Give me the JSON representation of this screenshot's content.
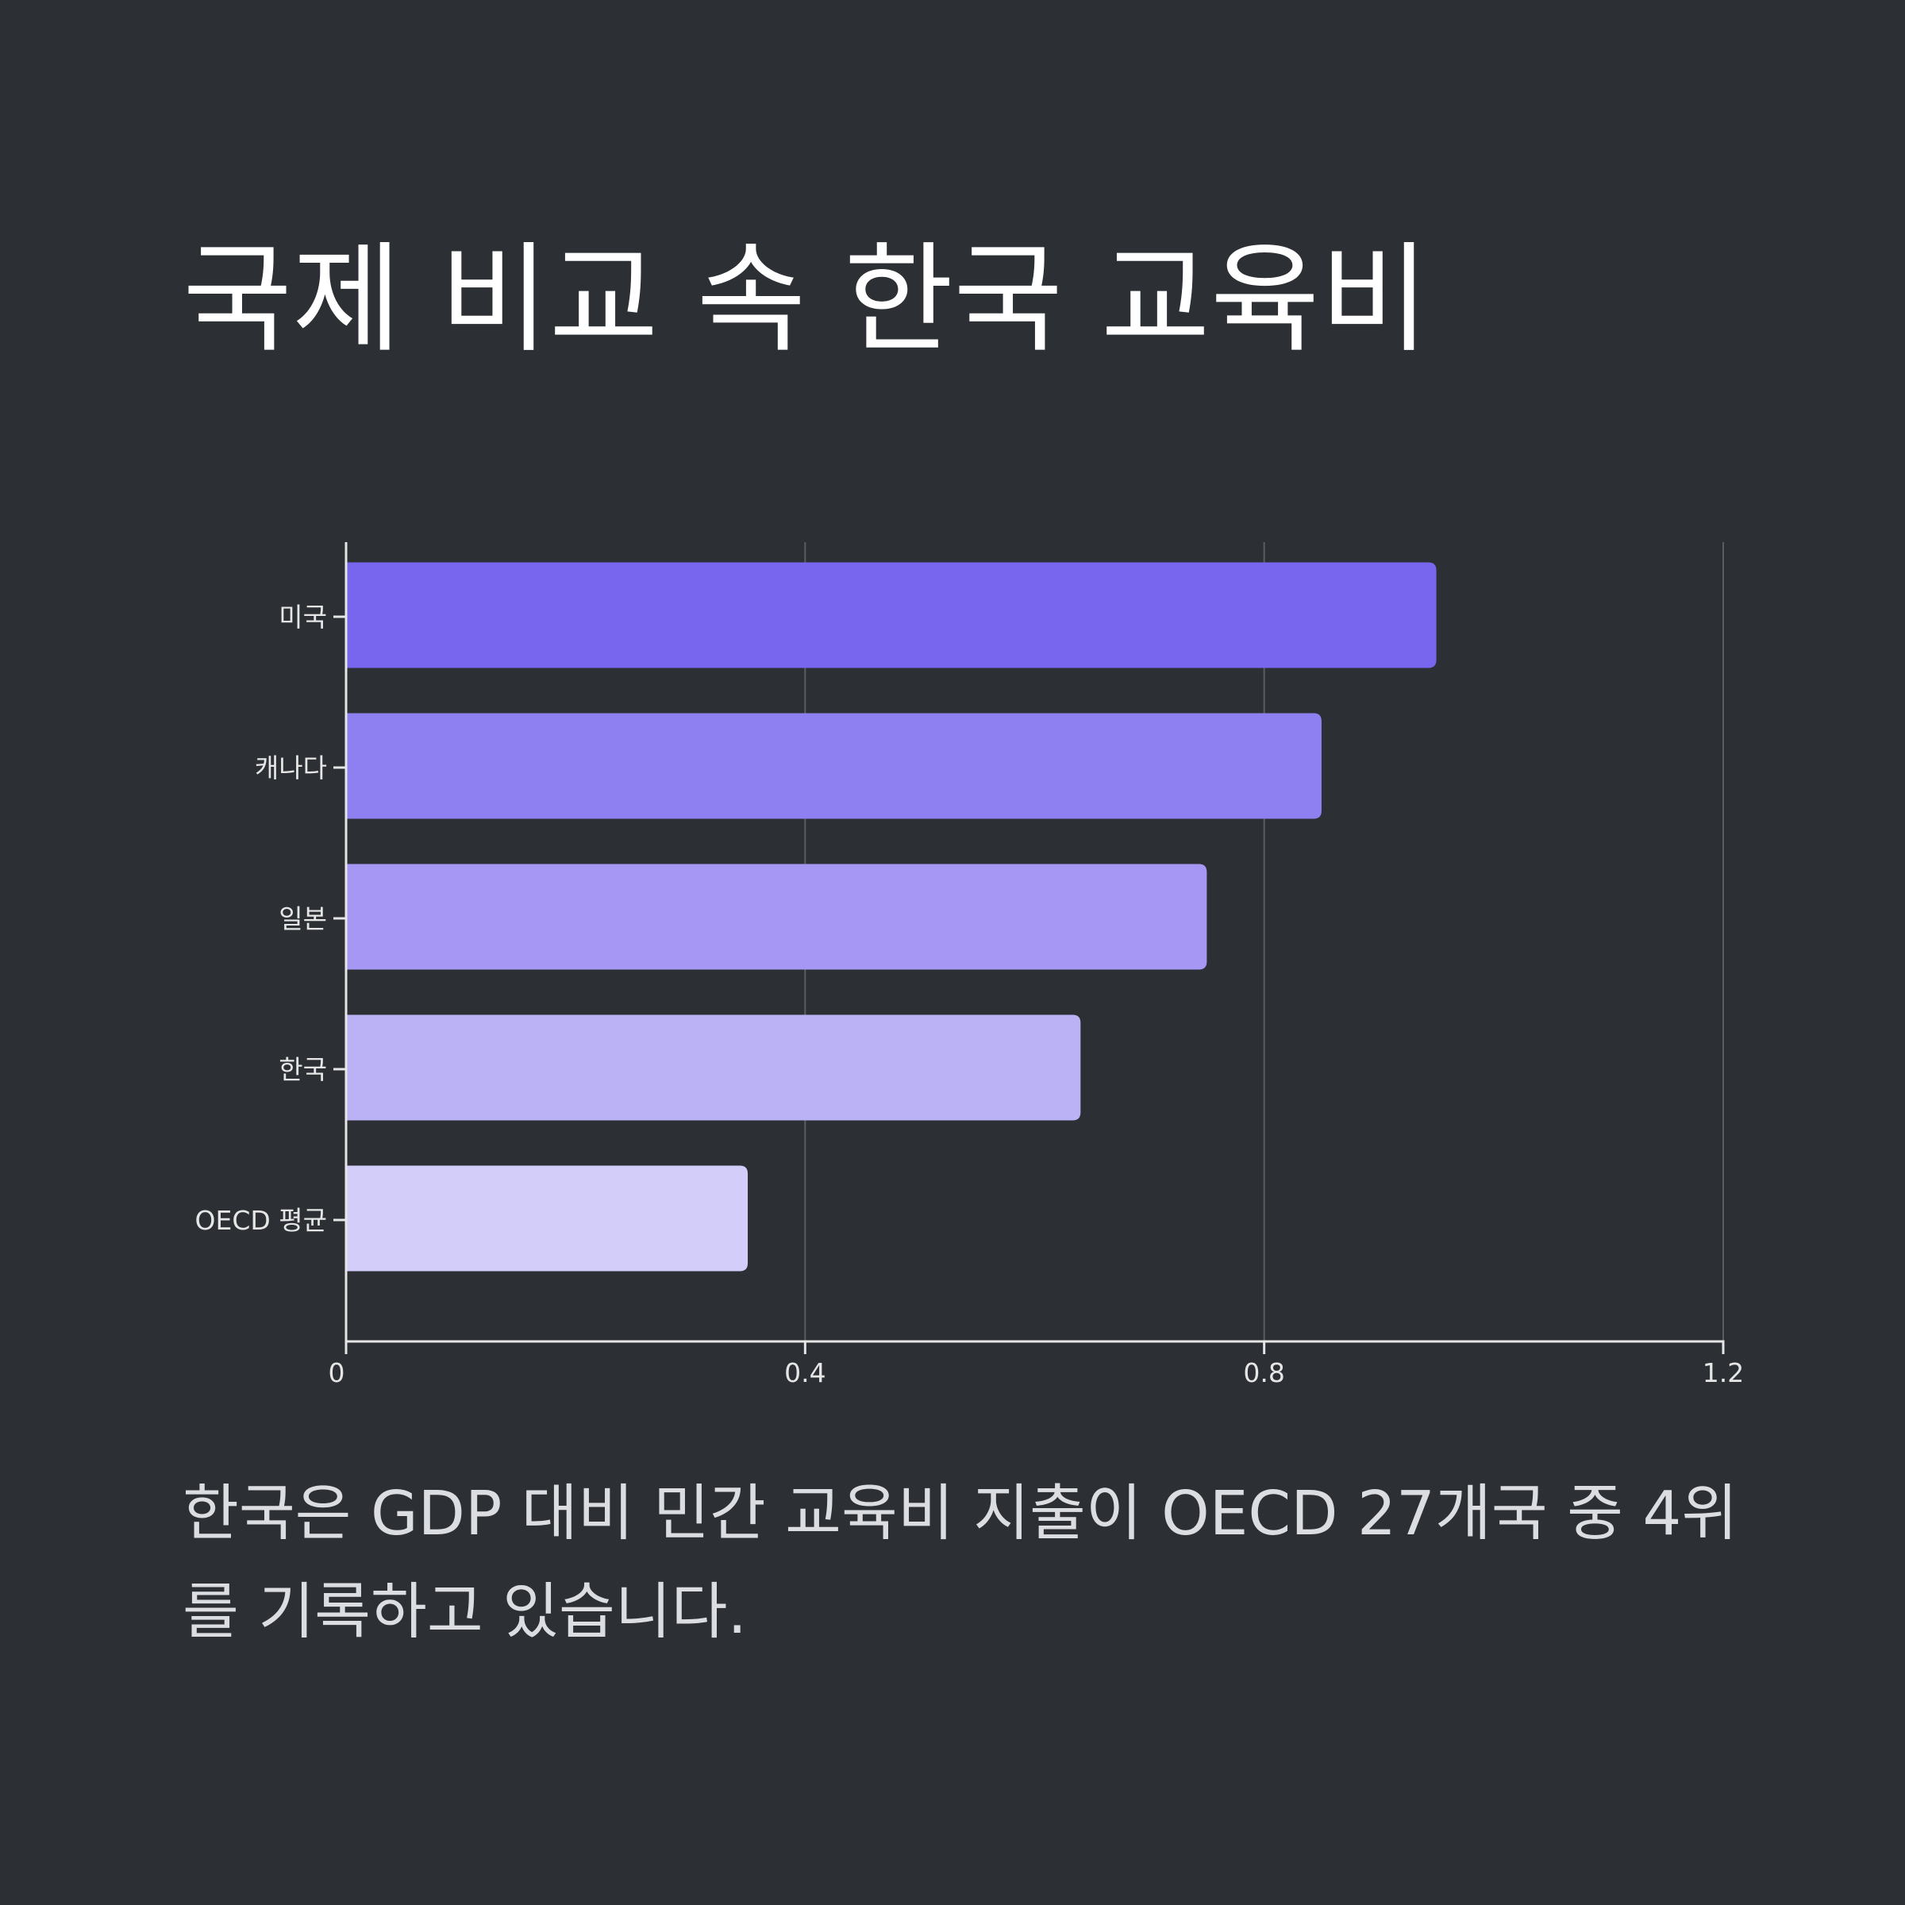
{
  "title": "국제 비교 속 한국 교육비",
  "caption": "한국은 GDP 대비 민간 교육비 지출이 OECD 27개국 중 4위를 기록하고 있습니다.",
  "colors": {
    "background": "#2c2f33",
    "axis": "#e6e6e6",
    "grid": "#5a5d62",
    "bars": [
      "#7966ee",
      "#8e80f0",
      "#a597f3",
      "#bbb2f6",
      "#d3cdfa"
    ]
  },
  "chart_data": {
    "type": "bar",
    "orientation": "horizontal",
    "categories": [
      "미국",
      "캐나다",
      "일본",
      "한국",
      "OECD 평균"
    ],
    "values": [
      0.95,
      0.85,
      0.75,
      0.64,
      0.35
    ],
    "xlim": [
      0,
      1.2
    ],
    "xticks": [
      0,
      0.4,
      0.8,
      1.2
    ],
    "xtick_labels": [
      "0",
      "0.4",
      "0.8",
      "1.2"
    ],
    "grid": "vertical",
    "legend": "none",
    "xlabel": "",
    "ylabel": ""
  }
}
